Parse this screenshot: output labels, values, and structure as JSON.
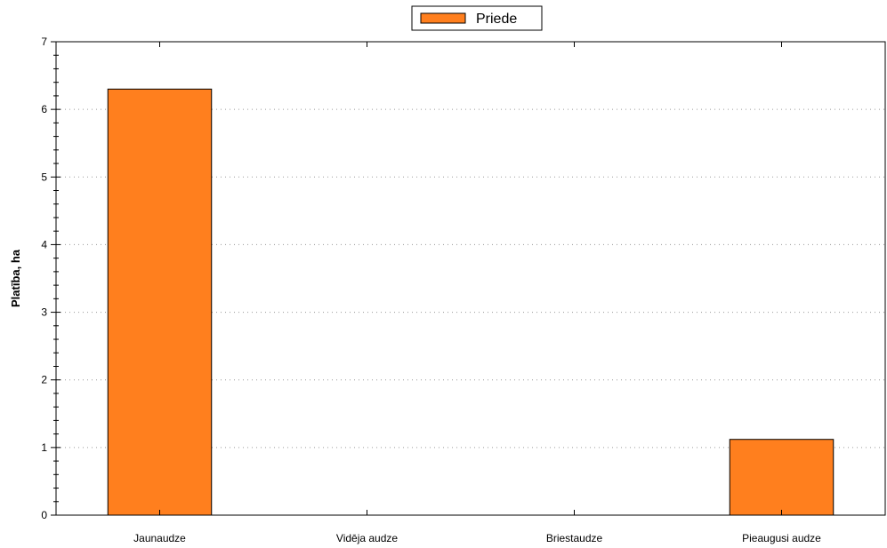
{
  "chart_data": {
    "type": "bar",
    "categories": [
      "Jaunaudze",
      "Vidēja audze",
      "Briestaudze",
      "Pieaugusi audze"
    ],
    "series": [
      {
        "name": "Priede",
        "values": [
          6.3,
          0,
          0,
          1.12
        ],
        "color": "#ff7f1e"
      }
    ],
    "xlabel": "",
    "ylabel": "Platība, ha",
    "ylim": [
      0,
      7
    ],
    "yticks": [
      0,
      1,
      2,
      3,
      4,
      5,
      6,
      7
    ],
    "grid": true,
    "legend": "top-center"
  }
}
